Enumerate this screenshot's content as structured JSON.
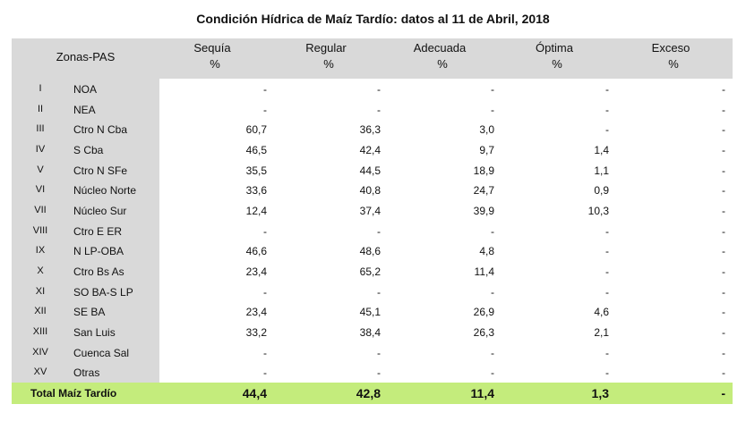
{
  "title": "Condición Hídrica de Maíz Tardío: datos al 11 de Abril, 2018",
  "table": {
    "zone_header": "Zonas-PAS",
    "columns": [
      {
        "name": "Sequía",
        "unit": "%"
      },
      {
        "name": "Regular",
        "unit": "%"
      },
      {
        "name": "Adecuada",
        "unit": "%"
      },
      {
        "name": "Óptima",
        "unit": "%"
      },
      {
        "name": "Exceso",
        "unit": "%"
      }
    ],
    "rows": [
      [
        "I",
        "NOA",
        "-",
        "-",
        "-",
        "-",
        "-"
      ],
      [
        "II",
        "NEA",
        "-",
        "-",
        "-",
        "-",
        "-"
      ],
      [
        "III",
        "Ctro N Cba",
        "60,7",
        "36,3",
        "3,0",
        "-",
        "-"
      ],
      [
        "IV",
        "S Cba",
        "46,5",
        "42,4",
        "9,7",
        "1,4",
        "-"
      ],
      [
        "V",
        "Ctro N SFe",
        "35,5",
        "44,5",
        "18,9",
        "1,1",
        "-"
      ],
      [
        "VI",
        "Núcleo Norte",
        "33,6",
        "40,8",
        "24,7",
        "0,9",
        "-"
      ],
      [
        "VII",
        "Núcleo Sur",
        "12,4",
        "37,4",
        "39,9",
        "10,3",
        "-"
      ],
      [
        "VIII",
        "Ctro E ER",
        "-",
        "-",
        "-",
        "-",
        "-"
      ],
      [
        "IX",
        "N LP-OBA",
        "46,6",
        "48,6",
        "4,8",
        "-",
        "-"
      ],
      [
        "X",
        "Ctro Bs As",
        "23,4",
        "65,2",
        "11,4",
        "-",
        "-"
      ],
      [
        "XI",
        "SO BA-S LP",
        "-",
        "-",
        "-",
        "-",
        "-"
      ],
      [
        "XII",
        "SE BA",
        "23,4",
        "45,1",
        "26,9",
        "4,6",
        "-"
      ],
      [
        "XIII",
        "San Luis",
        "33,2",
        "38,4",
        "26,3",
        "2,1",
        "-"
      ],
      [
        "XIV",
        "Cuenca Sal",
        "-",
        "-",
        "-",
        "-",
        "-"
      ],
      [
        "XV",
        "Otras",
        "-",
        "-",
        "-",
        "-",
        "-"
      ]
    ],
    "total": [
      "Total Maíz Tardío",
      "44,4",
      "42,8",
      "11,4",
      "1,3",
      "-"
    ]
  }
}
